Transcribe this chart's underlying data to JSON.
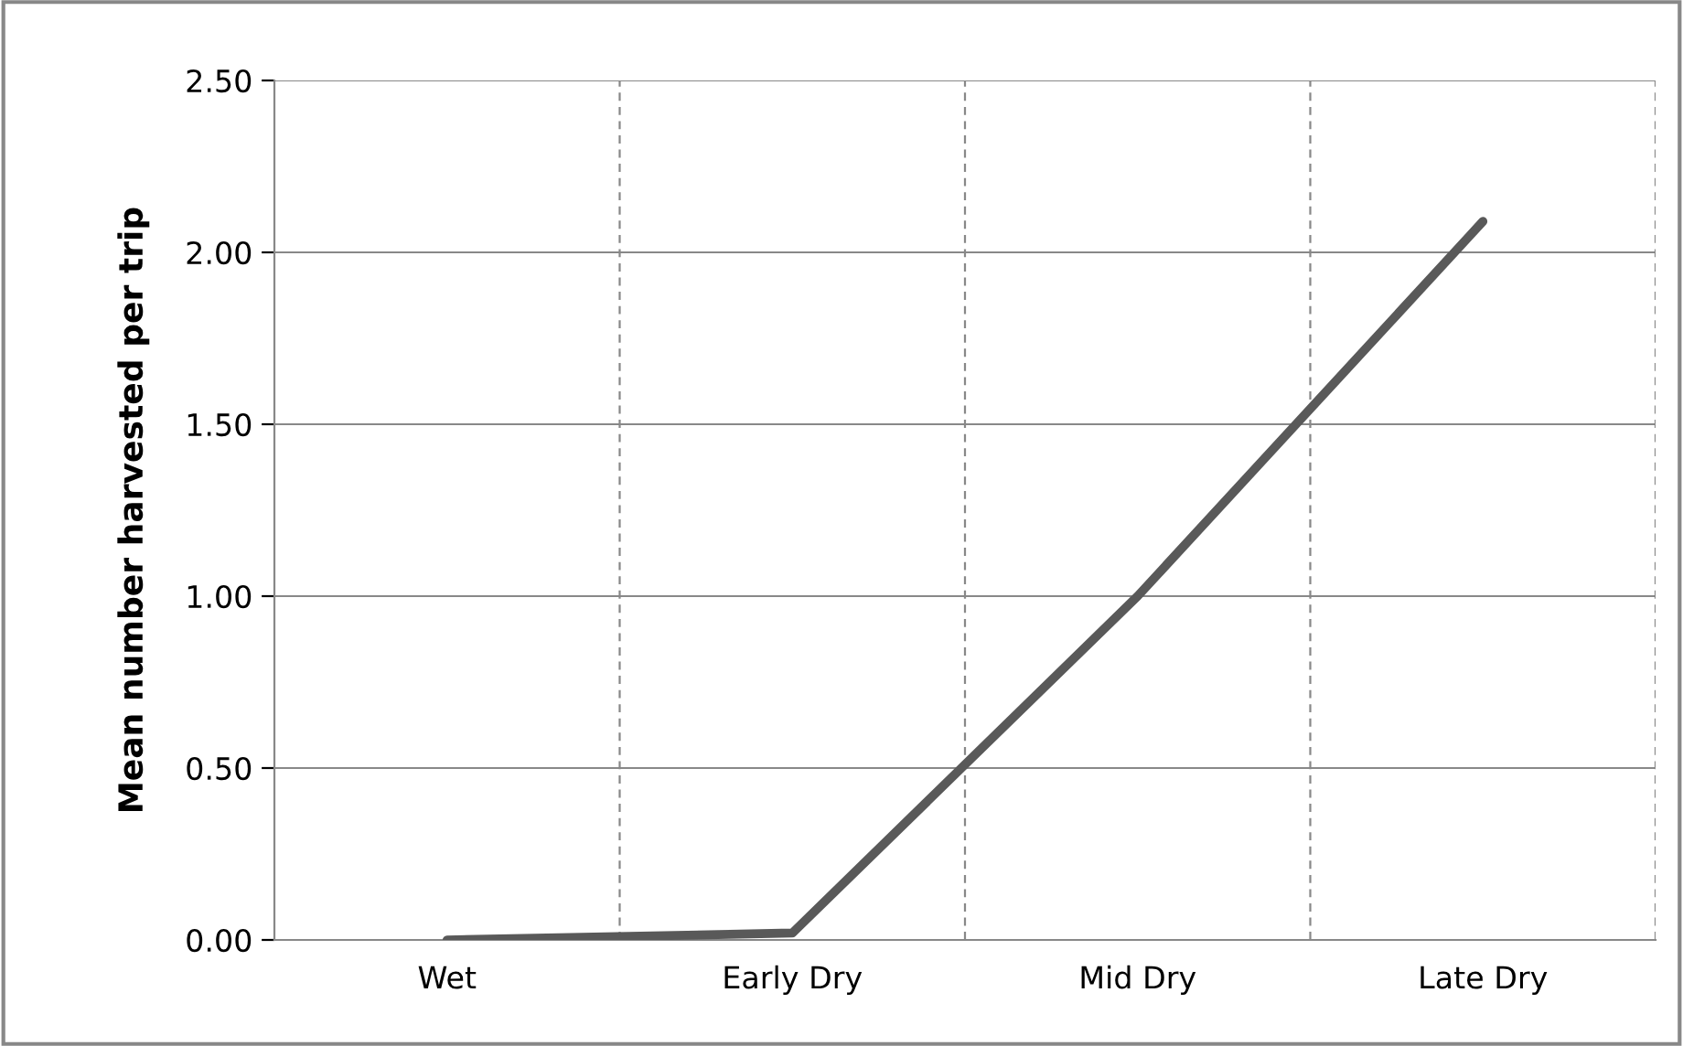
{
  "chart_data": {
    "type": "line",
    "ylabel": "Mean number harvested per trip",
    "categories": [
      "Wet",
      "Early Dry",
      "Mid Dry",
      "Late Dry"
    ],
    "series": [
      {
        "color": "#595959",
        "values": [
          0.0,
          0.02,
          1.0,
          2.09
        ]
      }
    ],
    "ylim": [
      0,
      2.5
    ],
    "yticks": [
      {
        "value": 0,
        "label": "0.00"
      },
      {
        "value": 0.5,
        "label": "0.50"
      },
      {
        "value": 1,
        "label": "1.00"
      },
      {
        "value": 1.5,
        "label": "1.50"
      },
      {
        "value": 2,
        "label": "2.00"
      },
      {
        "value": 2.5,
        "label": "2.50"
      }
    ],
    "grid": true,
    "marker": "none",
    "line_style": "solid"
  }
}
